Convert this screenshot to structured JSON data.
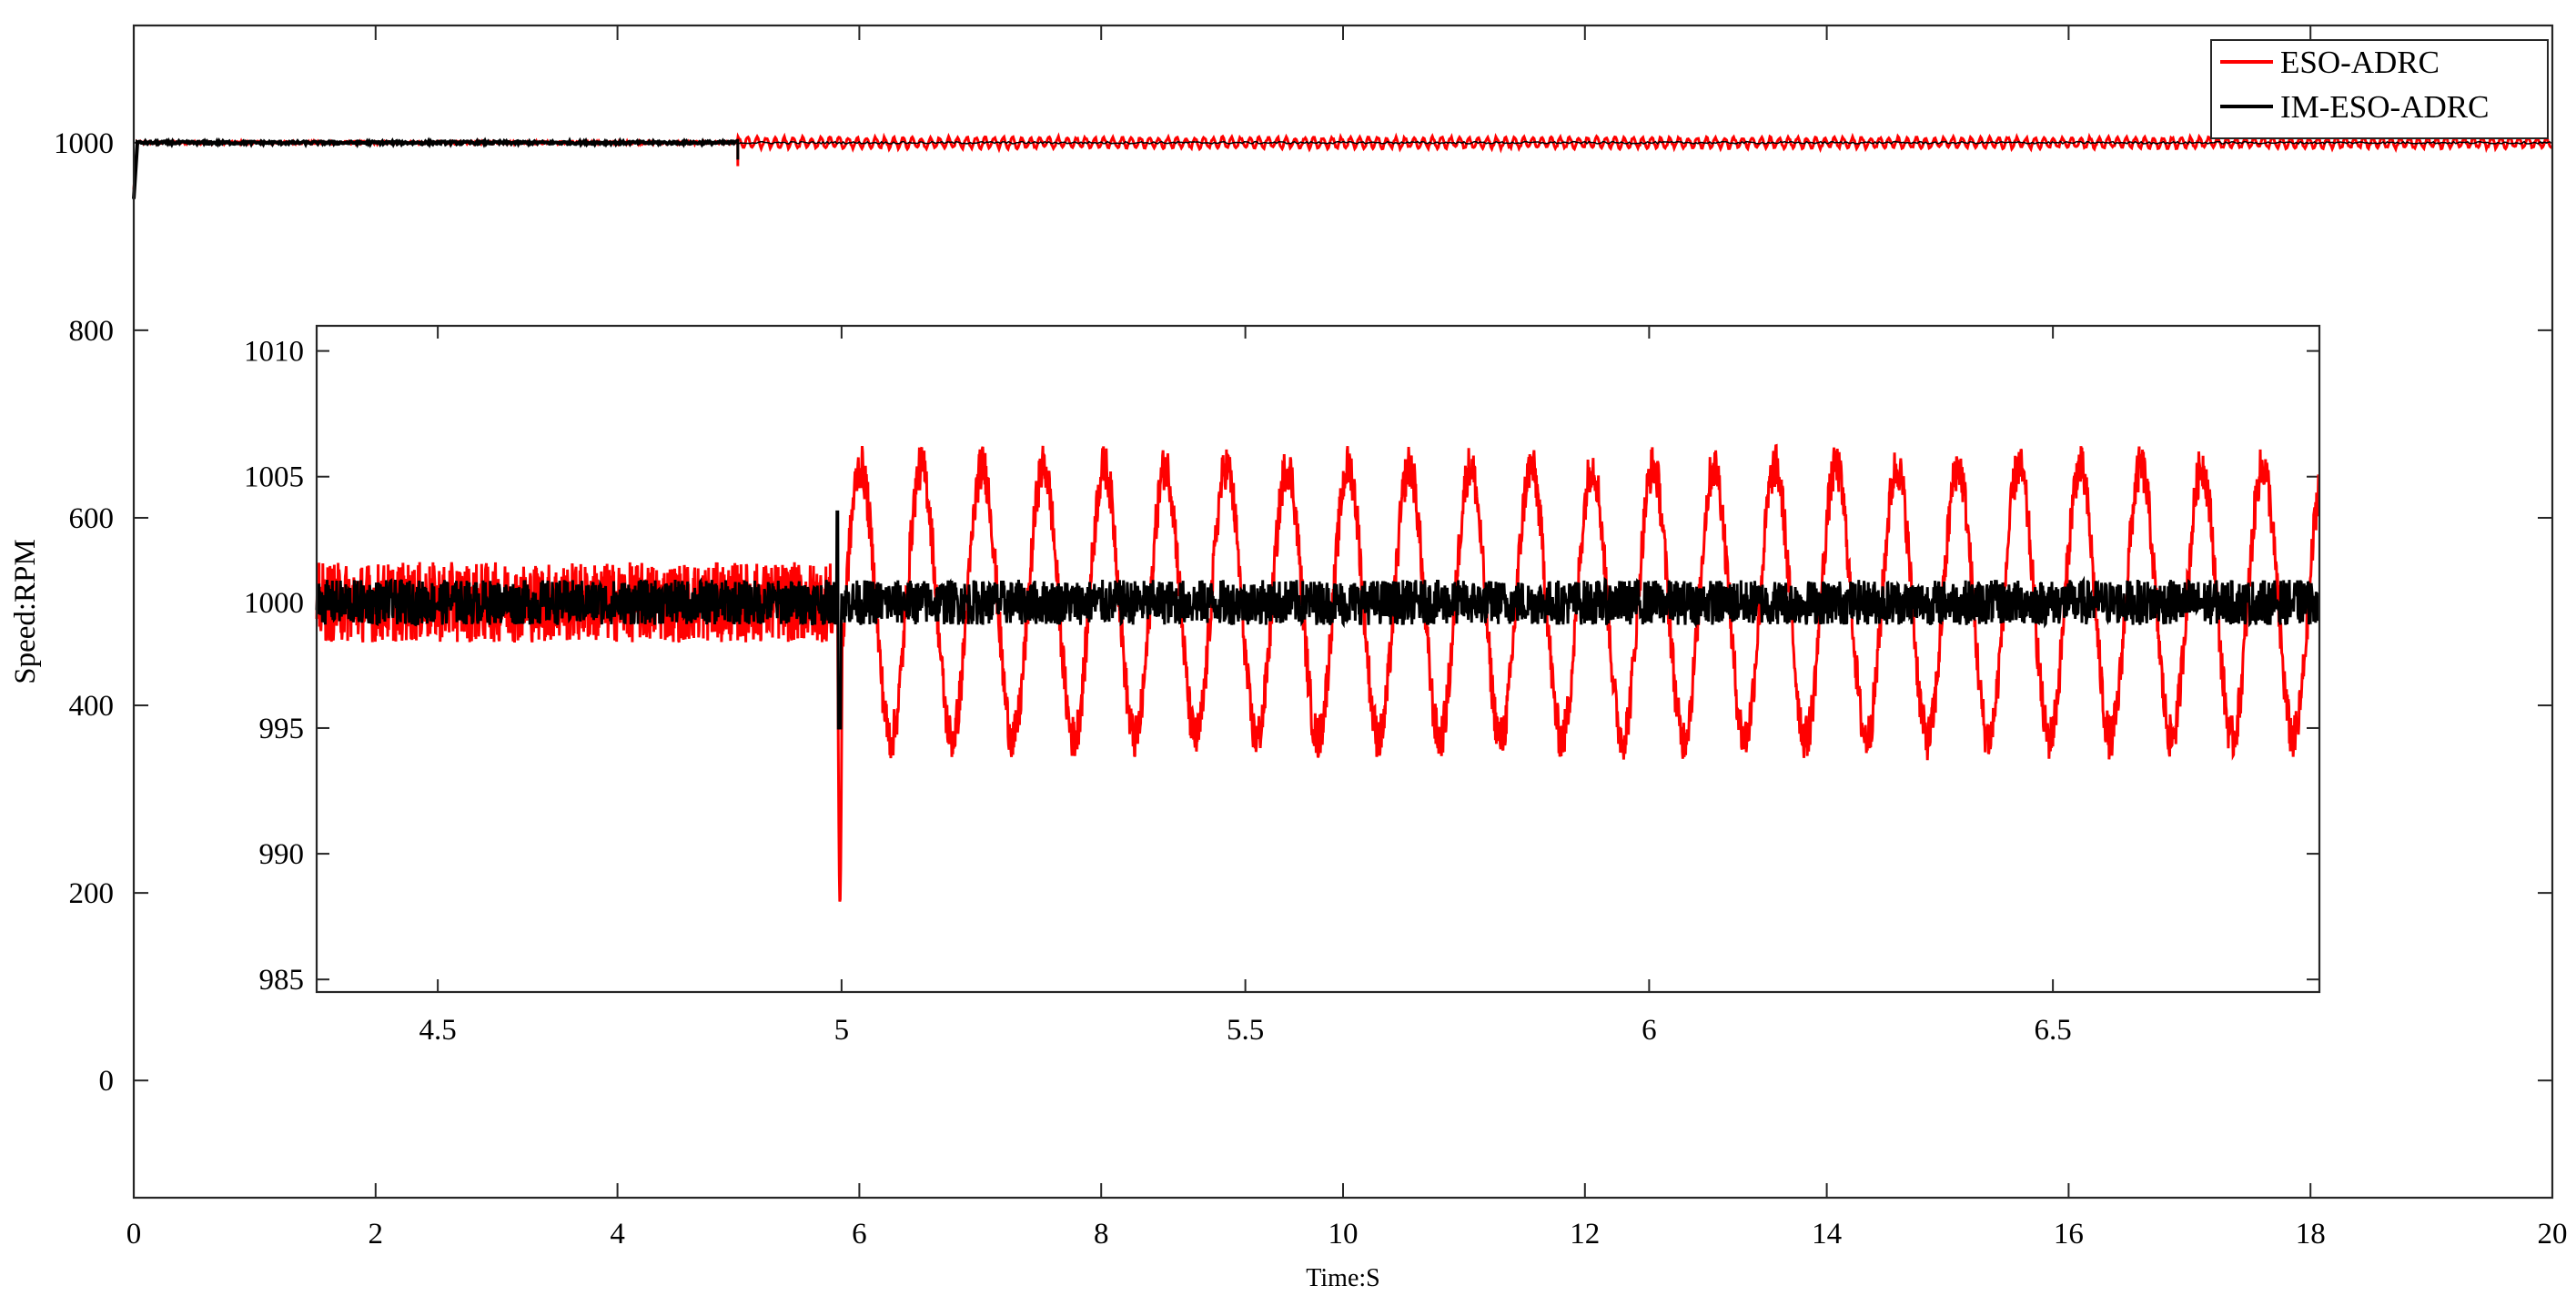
{
  "chart_data": [
    {
      "id": "main",
      "type": "line",
      "xlabel": "Time:S",
      "ylabel": "Speed:RPM",
      "xlim": [
        0,
        20
      ],
      "ylim": [
        -125,
        1125
      ],
      "xticks": [
        0,
        2,
        4,
        6,
        8,
        10,
        12,
        14,
        16,
        18,
        20
      ],
      "yticks": [
        0,
        200,
        400,
        600,
        800,
        1000
      ],
      "grid": false,
      "legend_position": "top-right",
      "series": [
        {
          "name": "ESO-ADRC",
          "color": "#ff0000",
          "description_points": [
            [
              0,
              950
            ],
            [
              0.05,
              1000
            ],
            [
              4.99,
              1000
            ],
            [
              5.0,
              988
            ],
            [
              5.02,
              1000
            ],
            [
              20,
              1000
            ]
          ],
          "steady_value": 1000,
          "noise_before_5s": 2,
          "oscillation_after_5s_amplitude": 5
        },
        {
          "name": "IM-ESO-ADRC",
          "color": "#000000",
          "steady_value": 1000,
          "noise": 1.5
        }
      ]
    },
    {
      "id": "inset",
      "type": "line",
      "xlabel": "",
      "ylabel": "",
      "xlim": [
        4.35,
        6.83
      ],
      "ylim": [
        984.5,
        1011
      ],
      "xticks": [
        4.5,
        5,
        5.5,
        6,
        6.5
      ],
      "yticks": [
        985,
        990,
        995,
        1000,
        1005,
        1010
      ],
      "grid": false,
      "series": [
        {
          "name": "ESO-ADRC",
          "color": "#ff0000",
          "pre_disturbance_level": 1000,
          "pre_disturbance_noise": 1.6,
          "disturbance_time": 4.995,
          "disturbance_min": 988,
          "oscillation_center": 1000,
          "oscillation_amplitude": 5.4,
          "oscillation_period": 0.0755
        },
        {
          "name": "IM-ESO-ADRC",
          "color": "#000000",
          "level": 1000,
          "noise": 0.9,
          "disturbance_time": 4.995,
          "disturbance_max": 1003.6,
          "disturbance_min": 995
        }
      ]
    }
  ],
  "colors": {
    "frame": "#262626",
    "eso": "#ff0000",
    "imeso": "#000000"
  }
}
